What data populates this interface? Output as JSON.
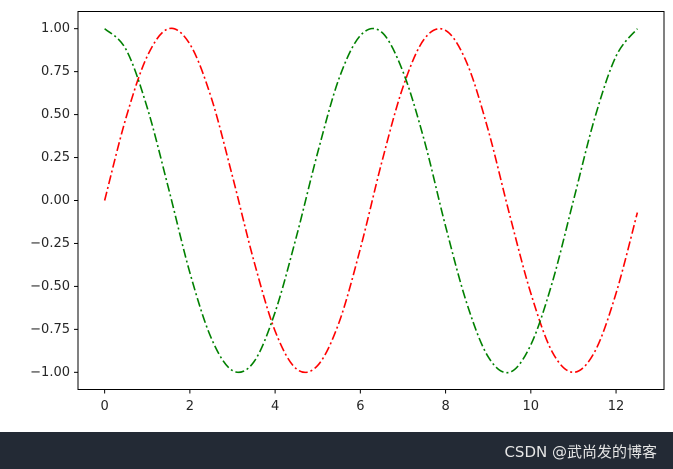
{
  "chart_data": {
    "type": "line",
    "x": [
      0,
      0.5,
      1,
      1.5,
      2,
      2.5,
      3,
      3.5,
      4,
      4.5,
      5,
      5.5,
      6,
      6.5,
      7,
      7.5,
      8,
      8.5,
      9,
      9.5,
      10,
      10.5,
      11,
      11.5,
      12,
      12.5
    ],
    "series": [
      {
        "color": "red",
        "values": [
          0,
          0.48,
          0.84,
          1.0,
          0.91,
          0.6,
          0.14,
          -0.35,
          -0.76,
          -0.98,
          -0.96,
          -0.71,
          -0.28,
          0.22,
          0.66,
          0.94,
          0.99,
          0.8,
          0.41,
          -0.08,
          -0.54,
          -0.88,
          -1.0,
          -0.88,
          -0.54,
          -0.07
        ]
      },
      {
        "color": "green",
        "values": [
          1,
          0.88,
          0.54,
          0.07,
          -0.42,
          -0.8,
          -0.99,
          -0.94,
          -0.65,
          -0.21,
          0.28,
          0.71,
          0.96,
          0.98,
          0.75,
          0.35,
          -0.15,
          -0.6,
          -0.91,
          -1.0,
          -0.84,
          -0.48,
          0.0,
          0.48,
          0.84,
          1.0
        ]
      }
    ],
    "linestyle": "dashdot",
    "xlim": [
      -0.625,
      13.125
    ],
    "xticks": [
      0,
      2,
      4,
      6,
      8,
      10,
      12
    ],
    "ylim": [
      -1.1,
      1.1
    ],
    "yticks": [
      {
        "value": -1,
        "label": "−1.00"
      },
      {
        "value": -0.75,
        "label": "−0.75"
      },
      {
        "value": -0.5,
        "label": "−0.50"
      },
      {
        "value": -0.25,
        "label": "−0.25"
      },
      {
        "value": 0,
        "label": "0.00"
      },
      {
        "value": 0.25,
        "label": "0.25"
      },
      {
        "value": 0.5,
        "label": "0.50"
      },
      {
        "value": 0.75,
        "label": "0.75"
      },
      {
        "value": 1,
        "label": "1.00"
      }
    ],
    "grid": false
  },
  "watermark": "CSDN @武尚发的博客"
}
